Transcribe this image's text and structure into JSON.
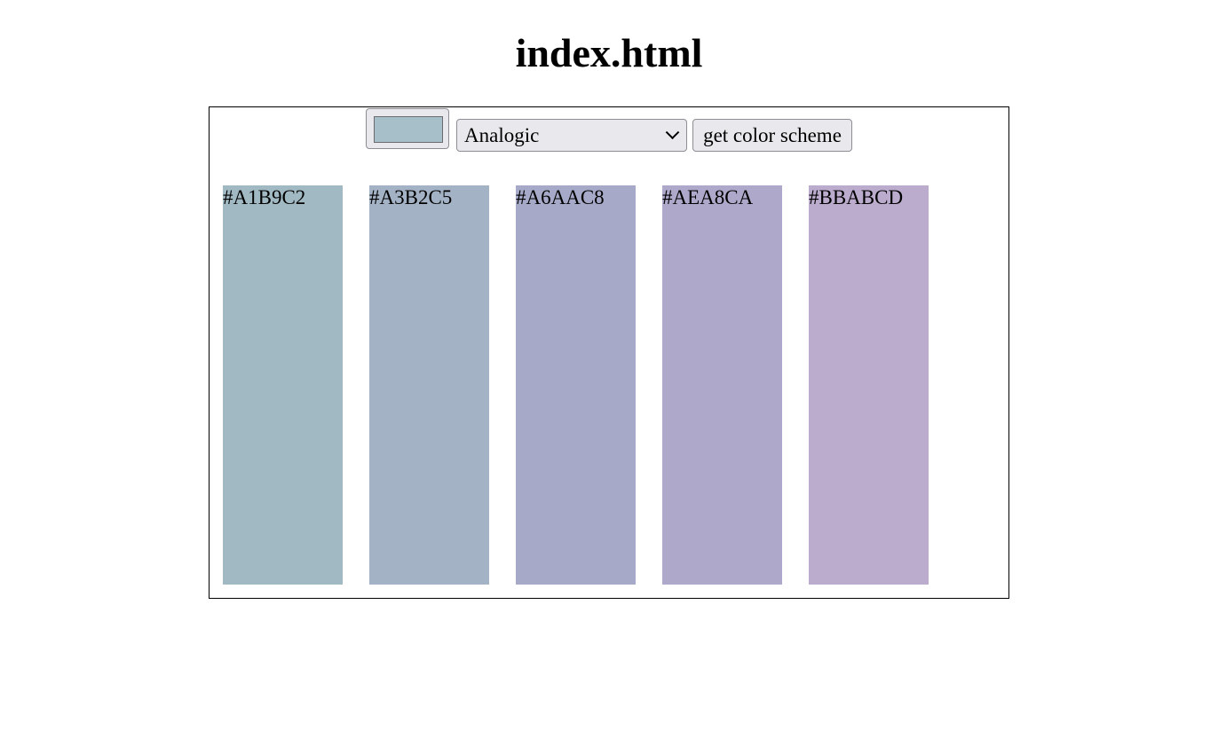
{
  "page": {
    "title": "index.html"
  },
  "controls": {
    "seed_color": "#A6BFC9",
    "scheme_mode": "Analogic",
    "button_label": "get color scheme"
  },
  "palette": [
    {
      "hex": "#A1B9C2",
      "color": "#A1B9C2"
    },
    {
      "hex": "#A3B2C5",
      "color": "#A3B2C5"
    },
    {
      "hex": "#A6AAC8",
      "color": "#A6AAC8"
    },
    {
      "hex": "#AEA8CA",
      "color": "#AEA8CA"
    },
    {
      "hex": "#BBABCD",
      "color": "#BBABCD"
    }
  ],
  "icons": {
    "dropdown": "chevron-down-icon"
  }
}
